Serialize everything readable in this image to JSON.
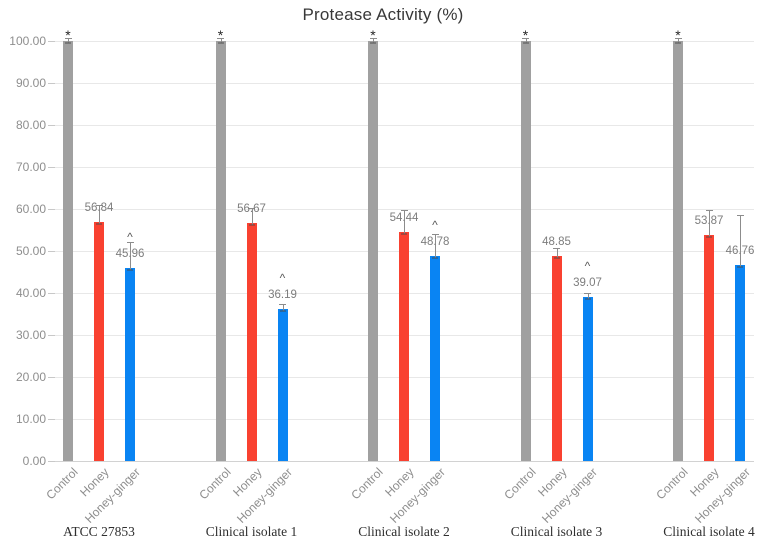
{
  "chart_data": {
    "type": "bar",
    "title": "Protease Activity (%)",
    "xlabel": "",
    "ylabel": "",
    "ylim": [
      0,
      100
    ],
    "ytick_step": 10,
    "ytick_labels": [
      "0.00",
      "10.00",
      "20.00",
      "30.00",
      "40.00",
      "50.00",
      "60.00",
      "70.00",
      "80.00",
      "90.00",
      "100.00"
    ],
    "grid": true,
    "legend_position": "none",
    "categories": [
      "ATCC 27853",
      "Clinical isolate 1",
      "Clinical isolate 2",
      "Clinical isolate 3",
      "Clinical isolate 4"
    ],
    "bar_tick_labels": [
      "Control",
      "Honey",
      "Honey-ginger"
    ],
    "series": [
      {
        "name": "Control",
        "color": "#a0a0a0",
        "values": [
          100.0,
          100.0,
          100.0,
          100.0,
          100.0
        ],
        "value_labels": [
          "",
          "",
          "",
          "",
          ""
        ],
        "error_up": [
          0.7,
          0.7,
          0.7,
          0.7,
          0.7
        ],
        "annotations": [
          "*",
          "*",
          "*",
          "*",
          "*"
        ]
      },
      {
        "name": "Honey",
        "color": "#f94130",
        "values": [
          56.84,
          56.67,
          54.44,
          48.85,
          53.87
        ],
        "value_labels": [
          "56.84",
          "56.67",
          "54.44",
          "48.85",
          "53.87"
        ],
        "error_up": [
          4.1,
          3.5,
          5.3,
          1.9,
          5.9
        ],
        "annotations": [
          "",
          "",
          "",
          "",
          ""
        ]
      },
      {
        "name": "Honey-ginger",
        "color": "#0984f3",
        "values": [
          45.96,
          36.19,
          48.78,
          39.07,
          46.76
        ],
        "value_labels": [
          "45.96",
          "36.19",
          "48.78",
          "39.07",
          "46.76"
        ],
        "error_up": [
          6.2,
          1.2,
          5.3,
          1.0,
          11.8
        ],
        "annotations": [
          "^",
          "^",
          "^",
          "^",
          ""
        ]
      }
    ]
  }
}
